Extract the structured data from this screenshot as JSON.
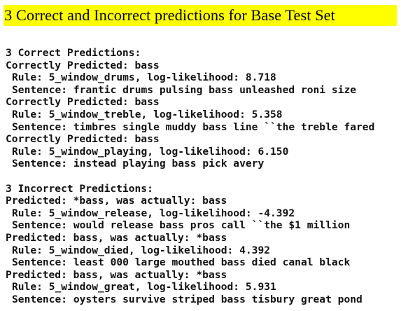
{
  "header": {
    "title": "3 Correct and Incorrect predictions for Base Test Set"
  },
  "correct": {
    "heading": "3 Correct Predictions:",
    "items": [
      {
        "predicted": "Correctly Predicted: bass",
        "rule": "Rule: 5_window_drums, log-likelihood: 8.718",
        "sentence": "Sentence: frantic drums pulsing bass unleashed roni size"
      },
      {
        "predicted": "Correctly Predicted: bass",
        "rule": "Rule: 5_window_treble, log-likelihood: 5.358",
        "sentence": "Sentence: timbres single muddy bass line ``the treble fared"
      },
      {
        "predicted": "Correctly Predicted: bass",
        "rule": "Rule: 5_window_playing, log-likelihood: 6.150",
        "sentence": "Sentence: instead playing bass pick avery"
      }
    ]
  },
  "incorrect": {
    "heading": "3 Incorrect Predictions:",
    "items": [
      {
        "predicted": "Predicted: *bass, was actually: bass",
        "rule": "Rule: 5_window_release, log-likelihood: -4.392",
        "sentence": "Sentence: would release bass pros call ``the $1 million"
      },
      {
        "predicted": "Predicted: bass, was actually: *bass",
        "rule": "Rule: 5_window_died, log-likelihood: 4.392",
        "sentence": "Sentence: least 000 large mouthed bass died canal black"
      },
      {
        "predicted": "Predicted: bass, was actually: *bass",
        "rule": "Rule: 5_window_great, log-likelihood: 5.931",
        "sentence": "Sentence: oysters survive striped bass tisbury great pond"
      }
    ]
  }
}
